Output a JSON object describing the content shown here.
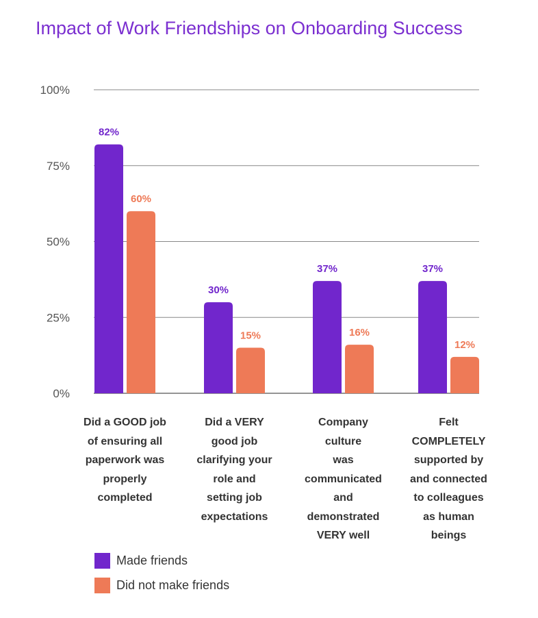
{
  "chart_data": {
    "type": "bar",
    "title": "Impact of Work Friendships on Onboarding Success",
    "categories": [
      "Did a GOOD job\nof ensuring all\npaperwork was\nproperly\ncompleted",
      "Did a VERY\ngood job\nclarifying your\nrole and\nsetting job\nexpectations",
      "Company culture\nwas communicated\nand demonstrated\nVERY well",
      "Felt\nCOMPLETELY\nsupported by\nand connected\nto colleagues\nas human\nbeings"
    ],
    "series": [
      {
        "name": "Made friends",
        "color": "#7126cc",
        "values": [
          82,
          30,
          37,
          37
        ],
        "labels": [
          "82%",
          "30%",
          "37%",
          "37%"
        ]
      },
      {
        "name": "Did not make friends",
        "color": "#ee7a57",
        "values": [
          60,
          15,
          16,
          12
        ],
        "labels": [
          "60%",
          "15%",
          "16%",
          "12%"
        ]
      }
    ],
    "y_ticks": [
      "0%",
      "25%",
      "50%",
      "75%",
      "100%"
    ],
    "ylim": [
      0,
      100
    ],
    "grid": true,
    "legend_position": "bottom-left"
  }
}
